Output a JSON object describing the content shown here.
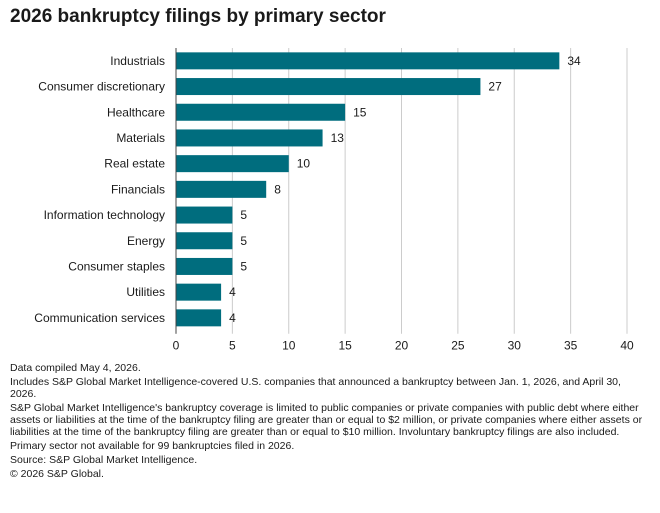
{
  "title": "2026 bankruptcy filings by primary sector",
  "colors": {
    "bar": "#006d7e",
    "grid": "#cccccc",
    "axis": "#444444"
  },
  "chart_data": {
    "type": "bar",
    "orientation": "horizontal",
    "categories": [
      "Industrials",
      "Consumer discretionary",
      "Healthcare",
      "Materials",
      "Real estate",
      "Financials",
      "Information technology",
      "Energy",
      "Consumer staples",
      "Utilities",
      "Communication services"
    ],
    "values": [
      34,
      27,
      15,
      13,
      10,
      8,
      5,
      5,
      5,
      4,
      4
    ],
    "xlim": [
      0,
      40
    ],
    "xticks": [
      0,
      5,
      10,
      15,
      20,
      25,
      30,
      35,
      40
    ],
    "grid": true,
    "data_labels": true
  },
  "notes": [
    "Data compiled May 4, 2026.",
    "Includes S&P Global Market Intelligence-covered U.S. companies that announced a bankruptcy between Jan. 1, 2026, and April 30, 2026.",
    "S&P Global Market Intelligence's bankruptcy coverage is limited to public companies or private companies with public debt where either assets or liabilities at the time of the bankruptcy filing are greater than or equal to $2 million, or private companies where either assets or liabilities at the time of the bankruptcy filing are greater than or equal to $10 million. Involuntary bankruptcy filings are also included.",
    "Primary sector not available for 99 bankruptcies filed in 2026.",
    "Source: S&P Global Market Intelligence.",
    "© 2026 S&P Global."
  ]
}
